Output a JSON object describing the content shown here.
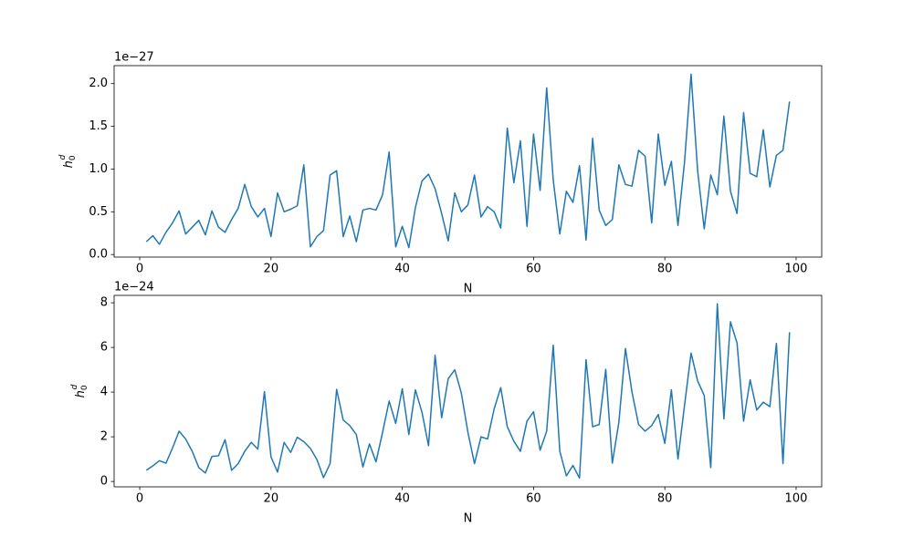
{
  "chart_data": [
    {
      "type": "line",
      "xlabel": "N",
      "ylabel": {
        "base": "h",
        "sub": "0",
        "sup": "d"
      },
      "offset_text": "1e−27",
      "color": "#1f77b4",
      "x": [
        1,
        2,
        3,
        4,
        5,
        6,
        7,
        8,
        9,
        10,
        11,
        12,
        13,
        14,
        15,
        16,
        17,
        18,
        19,
        20,
        21,
        22,
        23,
        24,
        25,
        26,
        27,
        28,
        29,
        30,
        31,
        32,
        33,
        34,
        35,
        36,
        37,
        38,
        39,
        40,
        41,
        42,
        43,
        44,
        45,
        46,
        47,
        48,
        49,
        50,
        51,
        52,
        53,
        54,
        55,
        56,
        57,
        58,
        59,
        60,
        61,
        62,
        63,
        64,
        65,
        66,
        67,
        68,
        69,
        70,
        71,
        72,
        73,
        74,
        75,
        76,
        77,
        78,
        79,
        80,
        81,
        82,
        83,
        84,
        85,
        86,
        87,
        88,
        89,
        90,
        91,
        92,
        93,
        94,
        95,
        96,
        97,
        98,
        99
      ],
      "values": [
        0.15,
        0.22,
        0.12,
        0.26,
        0.37,
        0.51,
        0.24,
        0.32,
        0.4,
        0.23,
        0.51,
        0.32,
        0.26,
        0.41,
        0.54,
        0.82,
        0.56,
        0.44,
        0.54,
        0.21,
        0.72,
        0.5,
        0.53,
        0.57,
        1.05,
        0.09,
        0.21,
        0.28,
        0.93,
        0.98,
        0.21,
        0.45,
        0.15,
        0.52,
        0.54,
        0.52,
        0.7,
        1.2,
        0.09,
        0.33,
        0.08,
        0.55,
        0.86,
        0.94,
        0.77,
        0.48,
        0.16,
        0.72,
        0.5,
        0.58,
        0.93,
        0.44,
        0.56,
        0.5,
        0.31,
        1.48,
        0.84,
        1.33,
        0.33,
        1.41,
        0.75,
        1.95,
        0.87,
        0.24,
        0.74,
        0.61,
        1.04,
        0.17,
        1.36,
        0.52,
        0.34,
        0.41,
        1.05,
        0.82,
        0.8,
        1.22,
        1.15,
        0.37,
        1.41,
        0.81,
        1.09,
        0.34,
        1.08,
        2.11,
        0.98,
        0.3,
        0.93,
        0.7,
        1.62,
        0.74,
        0.48,
        1.66,
        0.95,
        0.91,
        1.46,
        0.79,
        1.16,
        1.22,
        1.79
      ],
      "xlim": [
        -3.9,
        103.9
      ],
      "ylim": [
        -0.03,
        2.21
      ],
      "xticks": [
        0,
        20,
        40,
        60,
        80,
        100
      ],
      "yticks": [
        {
          "value": 0,
          "label": "0.0"
        },
        0.5,
        {
          "value": 1,
          "label": "1.0"
        },
        1.5,
        {
          "value": 2,
          "label": "2.0"
        }
      ]
    },
    {
      "type": "line",
      "xlabel": "N",
      "ylabel": {
        "base": "h",
        "sub": "0",
        "sup": "d"
      },
      "offset_text": "1e−24",
      "color": "#1f77b4",
      "x": [
        1,
        2,
        3,
        4,
        5,
        6,
        7,
        8,
        9,
        10,
        11,
        12,
        13,
        14,
        15,
        16,
        17,
        18,
        19,
        20,
        21,
        22,
        23,
        24,
        25,
        26,
        27,
        28,
        29,
        30,
        31,
        32,
        33,
        34,
        35,
        36,
        37,
        38,
        39,
        40,
        41,
        42,
        43,
        44,
        45,
        46,
        47,
        48,
        49,
        50,
        51,
        52,
        53,
        54,
        55,
        56,
        57,
        58,
        59,
        60,
        61,
        62,
        63,
        64,
        65,
        66,
        67,
        68,
        69,
        70,
        71,
        72,
        73,
        74,
        75,
        76,
        77,
        78,
        79,
        80,
        81,
        82,
        83,
        84,
        85,
        86,
        87,
        88,
        89,
        90,
        91,
        92,
        93,
        94,
        95,
        96,
        97,
        98,
        99
      ],
      "values": [
        0.5,
        0.7,
        0.93,
        0.82,
        1.5,
        2.25,
        1.9,
        1.35,
        0.62,
        0.38,
        1.12,
        1.15,
        1.87,
        0.5,
        0.8,
        1.35,
        1.75,
        1.45,
        4.02,
        1.1,
        0.42,
        1.75,
        1.3,
        1.98,
        1.78,
        1.48,
        0.98,
        0.17,
        0.8,
        4.12,
        2.75,
        2.5,
        2.1,
        0.65,
        1.68,
        0.88,
        2.2,
        3.6,
        2.6,
        4.15,
        2.1,
        4.1,
        3.1,
        1.6,
        5.65,
        2.85,
        4.6,
        5.0,
        3.95,
        2.2,
        0.8,
        2.0,
        1.9,
        3.25,
        4.2,
        2.45,
        1.8,
        1.35,
        2.7,
        3.12,
        1.4,
        2.25,
        6.1,
        1.35,
        0.25,
        0.72,
        0.15,
        5.45,
        2.45,
        2.55,
        5.02,
        0.82,
        2.65,
        5.95,
        4.0,
        2.55,
        2.25,
        2.5,
        3.0,
        1.7,
        4.1,
        1.0,
        3.4,
        5.75,
        4.5,
        3.85,
        0.62,
        7.95,
        2.8,
        7.15,
        6.2,
        2.7,
        4.55,
        3.2,
        3.55,
        3.35,
        6.18,
        0.8,
        6.68
      ],
      "xlim": [
        -3.9,
        103.9
      ],
      "ylim": [
        -0.24,
        8.33
      ],
      "xticks": [
        0,
        20,
        40,
        60,
        80,
        100
      ],
      "yticks": [
        0,
        2,
        4,
        6,
        8
      ]
    }
  ]
}
